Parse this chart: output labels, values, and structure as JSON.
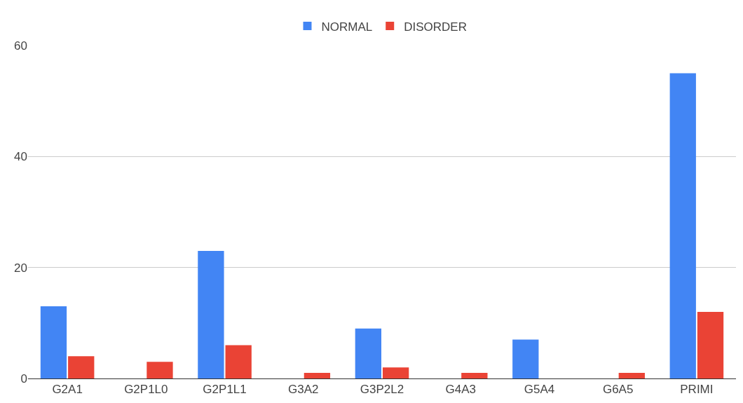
{
  "chart_data": {
    "type": "bar",
    "categories": [
      "G2A1",
      "G2P1L0",
      "G2P1L1",
      "G3A2",
      "G3P2L2",
      "G4A3",
      "G5A4",
      "G6A5",
      "PRIMI"
    ],
    "series": [
      {
        "name": "NORMAL",
        "color": "#4285f4",
        "values": [
          13,
          0,
          23,
          0,
          9,
          0,
          7,
          0,
          55
        ]
      },
      {
        "name": "DISORDER",
        "color": "#ea4335",
        "values": [
          4,
          3,
          6,
          1,
          2,
          1,
          0,
          1,
          12
        ]
      }
    ],
    "ylim": [
      0,
      60
    ],
    "yticks": [
      0,
      20,
      40,
      60
    ],
    "grid": "y",
    "legend": "top"
  }
}
